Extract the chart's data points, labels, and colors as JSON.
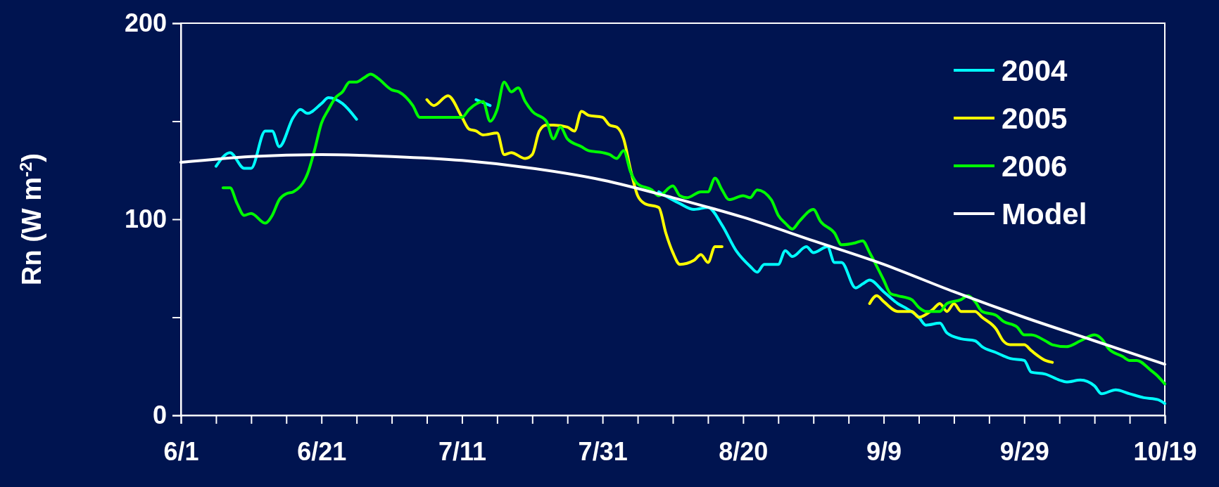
{
  "chart_data": {
    "type": "line",
    "ylabel": "Rn (W m$^{-2}$)",
    "xlim": [
      "--06-01",
      "--10-19"
    ],
    "xticks": [
      {
        "value": "--06-01",
        "label": "6/1"
      },
      {
        "value": "--06-06",
        "label": null
      },
      {
        "value": "--06-11",
        "label": null
      },
      {
        "value": "--06-16",
        "label": null
      },
      {
        "value": "--06-21",
        "label": "6/21"
      },
      {
        "value": "--06-26",
        "label": null
      },
      {
        "value": "--07-01",
        "label": null
      },
      {
        "value": "--07-06",
        "label": null
      },
      {
        "value": "--07-11",
        "label": "7/11"
      },
      {
        "value": "--07-16",
        "label": null
      },
      {
        "value": "--07-21",
        "label": null
      },
      {
        "value": "--07-26",
        "label": null
      },
      {
        "value": "--07-31",
        "label": "7/31"
      },
      {
        "value": "--08-05",
        "label": null
      },
      {
        "value": "--08-10",
        "label": null
      },
      {
        "value": "--08-15",
        "label": null
      },
      {
        "value": "--08-20",
        "label": "8/20"
      },
      {
        "value": "--08-25",
        "label": null
      },
      {
        "value": "--08-30",
        "label": null
      },
      {
        "value": "--09-04",
        "label": null
      },
      {
        "value": "--09-09",
        "label": "9/9"
      },
      {
        "value": "--09-14",
        "label": null
      },
      {
        "value": "--09-19",
        "label": null
      },
      {
        "value": "--09-24",
        "label": null
      },
      {
        "value": "--09-29",
        "label": "9/29"
      },
      {
        "value": "--10-04",
        "label": null
      },
      {
        "value": "--10-09",
        "label": null
      },
      {
        "value": "--10-14",
        "label": null
      },
      {
        "value": "--10-19",
        "label": "10/19"
      }
    ],
    "ylim": [
      0,
      200
    ],
    "yticks": [
      0,
      {
        "value": 50,
        "label": null
      },
      100,
      {
        "value": 150,
        "label": null
      },
      200
    ],
    "grid": false,
    "legend": "top right",
    "line_style": "solid",
    "marker": "none",
    "series": [
      {
        "name": "2004",
        "color": "#00ffff",
        "x": [
          "--06-06",
          "--06-08",
          "--06-10",
          "--06-11",
          "--06-13",
          "--06-14",
          "--06-15",
          "--06-17",
          "--06-18",
          "--06-19",
          "--06-21",
          "--06-22",
          "--06-24",
          "--06-26",
          "--07-01",
          "--07-13",
          "--07-15",
          "--07-25",
          "--08-08",
          "--08-11",
          "--08-13",
          "--08-15",
          "--08-17",
          "--08-19",
          "--08-21",
          "--08-22",
          "--08-23",
          "--08-25",
          "--08-26",
          "--08-27",
          "--08-29",
          "--08-30",
          "--09-01",
          "--09-02",
          "--09-03",
          "--09-05",
          "--09-06",
          "--09-07",
          "--09-09",
          "--09-11",
          "--09-12",
          "--09-14",
          "--09-15",
          "--09-17",
          "--09-18",
          "--09-20",
          "--09-22",
          "--09-23",
          "--09-25",
          "--09-27",
          "--09-29",
          "--09-30",
          "--10-02",
          "--10-04",
          "--10-05",
          "--10-07",
          "--10-09",
          "--10-10",
          "--10-12",
          "--10-14",
          "--10-16",
          "--10-18",
          "--10-19"
        ],
        "values": [
          127,
          134,
          126,
          126,
          145,
          145,
          137,
          152,
          156,
          154,
          159,
          162,
          159,
          151,
          null,
          161,
          158,
          null,
          114,
          108,
          105,
          106,
          97,
          84,
          76,
          73,
          77,
          77,
          84,
          81,
          86,
          83,
          86,
          78,
          78,
          65,
          67,
          69,
          63,
          57,
          55,
          50,
          46,
          47,
          42,
          39,
          38,
          35,
          32,
          29,
          28,
          22,
          21,
          18,
          17,
          18,
          15,
          11,
          13,
          11,
          9,
          8,
          6
        ]
      },
      {
        "name": "2005",
        "color": "#ffff00",
        "x": [
          "--07-06",
          "--07-07",
          "--07-09",
          "--07-11",
          "--07-12",
          "--07-13",
          "--07-14",
          "--07-16",
          "--07-17",
          "--07-18",
          "--07-20",
          "--07-21",
          "--07-22",
          "--07-23",
          "--07-24",
          "--07-26",
          "--07-27",
          "--07-28",
          "--07-29",
          "--07-31",
          "--08-01",
          "--08-02",
          "--08-03",
          "--08-04",
          "--08-05",
          "--08-06",
          "--08-08",
          "--08-09",
          "--08-10",
          "--08-11",
          "--08-13",
          "--08-14",
          "--08-15",
          "--08-16",
          "--08-17",
          "--08-25",
          "--09-07",
          "--09-08",
          "--09-09",
          "--09-11",
          "--09-13",
          "--09-14",
          "--09-16",
          "--09-17",
          "--09-18",
          "--09-19",
          "--09-20",
          "--09-22",
          "--09-23",
          "--09-25",
          "--09-26",
          "--09-27",
          "--09-29",
          "--09-30",
          "--10-02",
          "--10-03"
        ],
        "values": [
          161,
          158,
          163,
          152,
          146,
          145,
          143,
          144,
          133,
          134,
          131,
          133,
          145,
          148,
          148,
          147,
          145,
          155,
          153,
          152,
          148,
          147,
          141,
          125,
          112,
          108,
          106,
          93,
          83,
          77,
          79,
          82,
          78,
          86,
          86,
          null,
          57,
          61,
          58,
          53,
          53,
          50,
          54,
          57,
          53,
          57,
          53,
          53,
          50,
          44,
          38,
          36,
          36,
          33,
          28,
          27
        ]
      },
      {
        "name": "2006",
        "color": "#00ff00",
        "x": [
          "--06-07",
          "--06-08",
          "--06-09",
          "--06-10",
          "--06-11",
          "--06-13",
          "--06-14",
          "--06-15",
          "--06-16",
          "--06-17",
          "--06-19",
          "--06-20",
          "--06-21",
          "--06-22",
          "--06-23",
          "--06-24",
          "--06-25",
          "--06-26",
          "--06-27",
          "--06-28",
          "--06-29",
          "--07-01",
          "--07-02",
          "--07-04",
          "--07-05",
          "--07-07",
          "--07-09",
          "--07-11",
          "--07-12",
          "--07-14",
          "--07-15",
          "--07-16",
          "--07-17",
          "--07-18",
          "--07-19",
          "--07-20",
          "--07-21",
          "--07-23",
          "--07-24",
          "--07-25",
          "--07-26",
          "--07-28",
          "--07-29",
          "--07-31",
          "--08-01",
          "--08-02",
          "--08-03",
          "--08-04",
          "--08-05",
          "--08-07",
          "--08-08",
          "--08-10",
          "--08-11",
          "--08-12",
          "--08-14",
          "--08-15",
          "--08-16",
          "--08-17",
          "--08-18",
          "--08-20",
          "--08-21",
          "--08-22",
          "--08-24",
          "--08-25",
          "--08-26",
          "--08-27",
          "--08-28",
          "--08-30",
          "--08-31",
          "--09-02",
          "--09-03",
          "--09-05",
          "--09-06",
          "--09-07",
          "--09-09",
          "--09-10",
          "--09-11",
          "--09-13",
          "--09-14",
          "--09-15",
          "--09-17",
          "--09-18",
          "--09-20",
          "--09-21",
          "--09-22",
          "--09-23",
          "--09-25",
          "--09-26",
          "--09-28",
          "--09-29",
          "--09-30",
          "--10-02",
          "--10-03",
          "--10-05",
          "--10-07",
          "--10-09",
          "--10-10",
          "--10-11",
          "--10-13",
          "--10-14",
          "--10-15",
          "--10-17",
          "--10-18",
          "--10-19"
        ],
        "values": [
          116,
          116,
          108,
          102,
          103,
          98,
          102,
          110,
          113,
          114,
          123,
          135,
          149,
          156,
          162,
          165,
          170,
          170,
          172,
          174,
          172,
          166,
          165,
          158,
          152,
          152,
          152,
          152,
          156,
          160,
          150,
          156,
          170,
          165,
          167,
          160,
          155,
          150,
          141,
          147,
          141,
          137,
          135,
          134,
          133,
          131,
          135,
          124,
          118,
          115,
          112,
          117,
          112,
          111,
          114,
          114,
          121,
          115,
          110,
          112,
          111,
          115,
          110,
          102,
          98,
          95,
          99,
          105,
          99,
          93,
          87,
          88,
          89,
          83,
          69,
          62,
          61,
          59,
          55,
          53,
          53,
          57,
          59,
          61,
          58,
          53,
          51,
          48,
          45,
          41,
          41,
          38,
          36,
          35,
          38,
          41,
          39,
          34,
          30,
          28,
          28,
          23,
          20,
          16
        ]
      },
      {
        "name": "Model",
        "color": "#ffffff",
        "x": [
          "--06-01",
          "--06-11",
          "--06-21",
          "--07-01",
          "--07-11",
          "--07-21",
          "--07-31",
          "--08-10",
          "--08-20",
          "--08-30",
          "--09-09",
          "--09-19",
          "--09-29",
          "--10-09",
          "--10-19"
        ],
        "values": [
          129,
          132,
          133,
          132,
          130,
          126,
          120,
          111,
          101,
          89,
          77,
          63,
          50,
          38,
          26
        ]
      }
    ]
  }
}
